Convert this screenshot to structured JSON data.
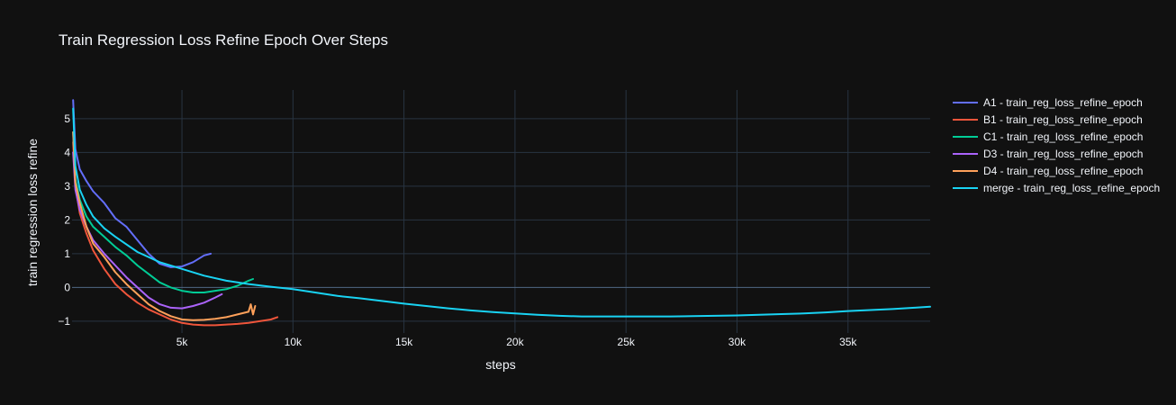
{
  "chart_data": {
    "type": "line",
    "title": "Train Regression Loss Refine Epoch Over Steps",
    "xlabel": "steps",
    "ylabel": "train regression loss refine",
    "xlim": [
      50,
      38700
    ],
    "ylim": [
      -1.35,
      5.85
    ],
    "x_ticks": [
      5000,
      10000,
      15000,
      20000,
      25000,
      30000,
      35000
    ],
    "x_tick_labels": [
      "5k",
      "10k",
      "15k",
      "20k",
      "25k",
      "30k",
      "35k"
    ],
    "y_ticks": [
      -1,
      0,
      1,
      2,
      3,
      4,
      5
    ],
    "y_tick_labels": [
      "−1",
      "0",
      "1",
      "2",
      "3",
      "4",
      "5"
    ],
    "grid": true,
    "legend_position": "right",
    "series": [
      {
        "name": "A1 - train_reg_loss_refine_epoch",
        "color": "#636efa",
        "x": [
          100,
          200,
          400,
          700,
          1000,
          1500,
          2000,
          2500,
          3000,
          3500,
          4000,
          4500,
          5000,
          5500,
          6000,
          6300
        ],
        "y": [
          5.55,
          4.1,
          3.5,
          3.15,
          2.85,
          2.5,
          2.05,
          1.8,
          1.4,
          1.0,
          0.7,
          0.6,
          0.62,
          0.75,
          0.95,
          1.0
        ]
      },
      {
        "name": "B1 - train_reg_loss_refine_epoch",
        "color": "#ef553b",
        "x": [
          100,
          200,
          400,
          700,
          1000,
          1500,
          2000,
          2500,
          3000,
          3500,
          4000,
          4500,
          5000,
          5500,
          6000,
          6500,
          7000,
          7500,
          8000,
          8500,
          9000,
          9300
        ],
        "y": [
          4.3,
          3.0,
          2.2,
          1.6,
          1.1,
          0.55,
          0.1,
          -0.2,
          -0.45,
          -0.65,
          -0.8,
          -0.95,
          -1.05,
          -1.1,
          -1.12,
          -1.12,
          -1.1,
          -1.08,
          -1.05,
          -1.0,
          -0.95,
          -0.88
        ]
      },
      {
        "name": "C1 - train_reg_loss_refine_epoch",
        "color": "#00cc96",
        "x": [
          100,
          200,
          400,
          700,
          1000,
          1500,
          2000,
          2500,
          3000,
          3500,
          4000,
          4500,
          5000,
          5500,
          6000,
          6500,
          7000,
          7500,
          8000,
          8200
        ],
        "y": [
          4.6,
          3.2,
          2.6,
          2.1,
          1.8,
          1.5,
          1.2,
          0.95,
          0.65,
          0.4,
          0.15,
          0.0,
          -0.1,
          -0.15,
          -0.15,
          -0.1,
          -0.05,
          0.05,
          0.2,
          0.25
        ]
      },
      {
        "name": "D3 - train_reg_loss_refine_epoch",
        "color": "#ab63fa",
        "x": [
          100,
          200,
          400,
          700,
          1000,
          1500,
          2000,
          2500,
          3000,
          3500,
          4000,
          4500,
          5000,
          5500,
          6000,
          6500,
          6800
        ],
        "y": [
          4.0,
          2.9,
          2.3,
          1.8,
          1.4,
          1.0,
          0.65,
          0.3,
          0.0,
          -0.3,
          -0.5,
          -0.6,
          -0.62,
          -0.55,
          -0.45,
          -0.3,
          -0.2
        ]
      },
      {
        "name": "D4 - train_reg_loss_refine_epoch",
        "color": "#ffa15a",
        "x": [
          100,
          200,
          400,
          700,
          1000,
          1500,
          2000,
          2500,
          3000,
          3500,
          4000,
          4500,
          5000,
          5500,
          6000,
          6500,
          7000,
          7500,
          8000,
          8100,
          8200,
          8300
        ],
        "y": [
          4.6,
          3.1,
          2.5,
          1.8,
          1.3,
          0.9,
          0.45,
          0.1,
          -0.2,
          -0.5,
          -0.7,
          -0.85,
          -0.95,
          -0.97,
          -0.96,
          -0.93,
          -0.88,
          -0.8,
          -0.72,
          -0.5,
          -0.8,
          -0.55
        ]
      },
      {
        "name": "merge - train_reg_loss_refine_epoch",
        "color": "#19d3f3",
        "x": [
          100,
          200,
          400,
          700,
          1000,
          1500,
          2000,
          3000,
          4000,
          5000,
          6000,
          7000,
          8000,
          9000,
          10000,
          11000,
          12000,
          13000,
          14000,
          15000,
          16000,
          17000,
          18000,
          19000,
          20000,
          21000,
          22000,
          23000,
          24000,
          25000,
          26000,
          27000,
          28000,
          29000,
          30000,
          31000,
          32000,
          33000,
          34000,
          35000,
          36000,
          37000,
          38000,
          38700
        ],
        "y": [
          5.3,
          3.6,
          2.9,
          2.45,
          2.1,
          1.75,
          1.5,
          1.05,
          0.75,
          0.55,
          0.35,
          0.2,
          0.1,
          0.02,
          -0.05,
          -0.15,
          -0.25,
          -0.32,
          -0.4,
          -0.48,
          -0.55,
          -0.62,
          -0.68,
          -0.73,
          -0.77,
          -0.81,
          -0.84,
          -0.86,
          -0.86,
          -0.86,
          -0.86,
          -0.86,
          -0.85,
          -0.84,
          -0.83,
          -0.81,
          -0.79,
          -0.77,
          -0.74,
          -0.7,
          -0.67,
          -0.64,
          -0.6,
          -0.57
        ]
      }
    ]
  }
}
